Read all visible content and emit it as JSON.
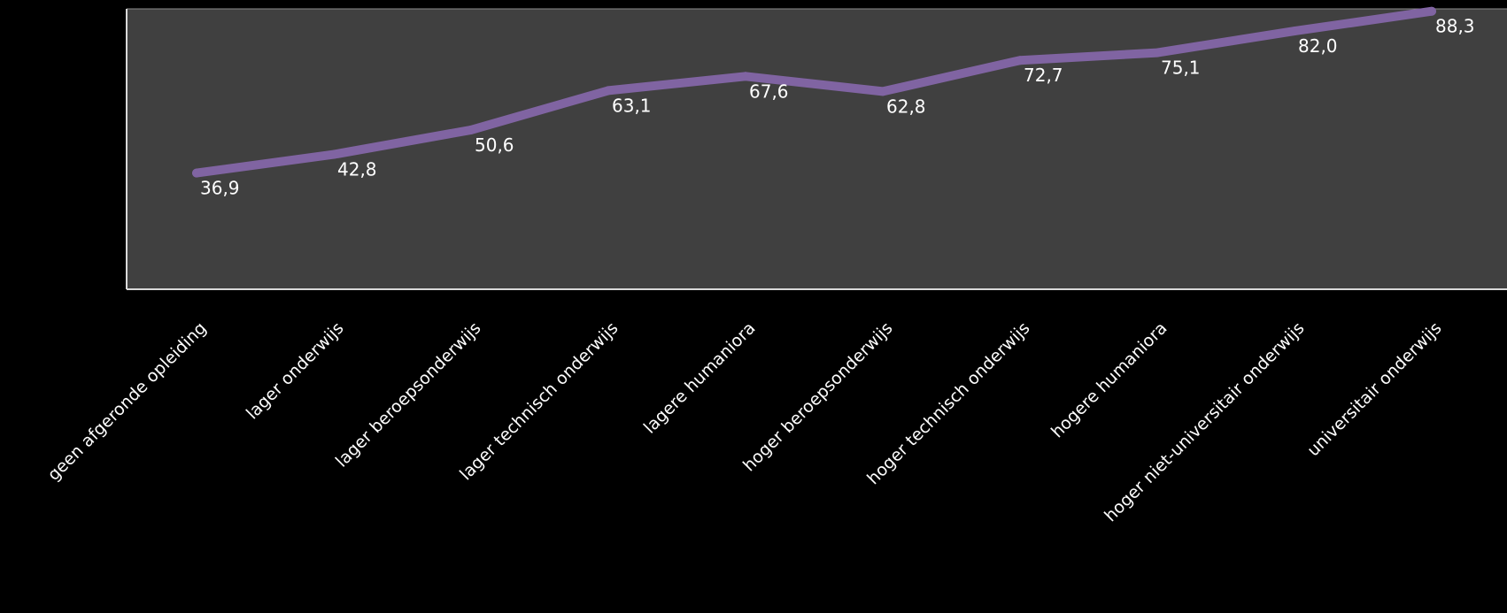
{
  "colors": {
    "page_background": "#000000",
    "plot_background": "#404040",
    "plot_border": "#d9d9d9",
    "line": "#8064a2",
    "data_label": "#ffffff",
    "tick_label": "#ffffff"
  },
  "chart_data": {
    "type": "line",
    "title": "",
    "xlabel": "",
    "ylabel": "",
    "ylim": [
      0,
      95
    ],
    "grid": false,
    "legend": "none",
    "categories": [
      "geen afgeronde opleiding",
      "lager onderwijs",
      "lager beroepsonderwijs",
      "lager technisch onderwijs",
      "lagere humaniora",
      "hoger beroepsonderwijs",
      "hoger technisch onderwijs",
      "hogere humaniora",
      "hoger niet-universitair onderwijs",
      "universitair onderwijs"
    ],
    "values": [
      36.9,
      42.8,
      50.6,
      63.1,
      67.6,
      62.8,
      72.7,
      75.1,
      82.0,
      88.3
    ],
    "value_labels": [
      "36,9",
      "42,8",
      "50,6",
      "63,1",
      "67,6",
      "62,8",
      "72,7",
      "75,1",
      "82,0",
      "88,3"
    ]
  }
}
